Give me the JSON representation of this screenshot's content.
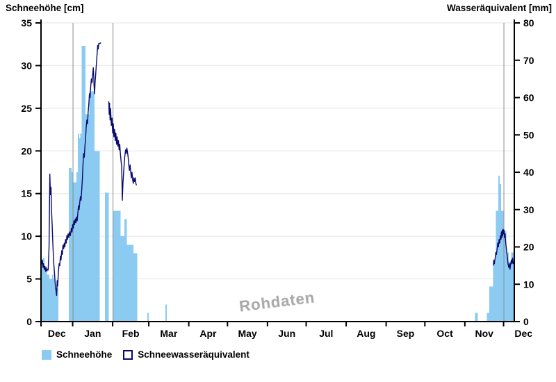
{
  "watermark": "Rohdaten",
  "legend": [
    {
      "label": "Schneehöhe",
      "swatch": "filled-lightblue-square"
    },
    {
      "label": "Schneewasseräquivalent",
      "swatch": "outlined-navy-square"
    }
  ],
  "colors": {
    "bar": "#8BCBF2",
    "line": "#0A0A6E",
    "grid": "#E6E6E6",
    "separator": "#8A8A8A",
    "axis": "#000000",
    "watermark": "#9C9C9C"
  },
  "chart_data": {
    "type": "bar+line",
    "title_left": "Schneehöhe [cm]",
    "title_right": "Wasseräquivalent [mm]",
    "left_axis": {
      "label": "Schneehöhe [cm]",
      "min": 0,
      "max": 35,
      "tick_step": 5,
      "ticks": [
        0,
        5,
        10,
        15,
        20,
        25,
        30,
        35
      ]
    },
    "right_axis": {
      "label": "Wasseräquivalent [mm]",
      "min": 0,
      "max": 80,
      "tick_step": 10,
      "ticks": [
        0,
        10,
        20,
        30,
        40,
        50,
        60,
        70,
        80
      ]
    },
    "x_axis": {
      "unit": "day of season, 0 = first Dec 1",
      "month_labels": [
        "Dec",
        "Jan",
        "Feb",
        "Mar",
        "Apr",
        "May",
        "Jun",
        "Jul",
        "Aug",
        "Sep",
        "Oct",
        "Nov",
        "Dec"
      ],
      "month_start_days": [
        0,
        31,
        62,
        90,
        121,
        151,
        182,
        212,
        243,
        274,
        304,
        335,
        365,
        396
      ],
      "visible_day_range": [
        6.5,
        373.4
      ]
    },
    "grid": {
      "horizontal": true,
      "vertical_month_separator_days": [
        31,
        62,
        365
      ]
    },
    "legend_position": "bottom-left",
    "snow_depth_bars_cm": [
      [
        7,
        7
      ],
      [
        8,
        7.5
      ],
      [
        9,
        6.5
      ],
      [
        10,
        6
      ],
      [
        11,
        5.5
      ],
      [
        12,
        5.5
      ],
      [
        13,
        5
      ],
      [
        14,
        5
      ],
      [
        15,
        5.5
      ],
      [
        16,
        5
      ],
      [
        17,
        4.5
      ],
      [
        18,
        4
      ],
      [
        19,
        4
      ],
      [
        28,
        18
      ],
      [
        29,
        18
      ],
      [
        30,
        17.5
      ],
      [
        31,
        16.3
      ],
      [
        32,
        16.3
      ],
      [
        33,
        16.3
      ],
      [
        34,
        17.5
      ],
      [
        35,
        22
      ],
      [
        36,
        21.5
      ],
      [
        37,
        22
      ],
      [
        38,
        32.3
      ],
      [
        39,
        32.3
      ],
      [
        40,
        32.3
      ],
      [
        41,
        24.3
      ],
      [
        42,
        24.3
      ],
      [
        43,
        24.3
      ],
      [
        44,
        27
      ],
      [
        45,
        27
      ],
      [
        46,
        27
      ],
      [
        47,
        27
      ],
      [
        48,
        20
      ],
      [
        49,
        20
      ],
      [
        50,
        20
      ],
      [
        51,
        20
      ],
      [
        56,
        15.1
      ],
      [
        57,
        15.1
      ],
      [
        58,
        15.1
      ],
      [
        62,
        13
      ],
      [
        63,
        13
      ],
      [
        64,
        13
      ],
      [
        65,
        13
      ],
      [
        66,
        13
      ],
      [
        67,
        13
      ],
      [
        68,
        10
      ],
      [
        69,
        10
      ],
      [
        70,
        10
      ],
      [
        71,
        12
      ],
      [
        72,
        12
      ],
      [
        73,
        9
      ],
      [
        74,
        9
      ],
      [
        75,
        9
      ],
      [
        76,
        9
      ],
      [
        77,
        9
      ],
      [
        78,
        8
      ],
      [
        79,
        8
      ],
      [
        80,
        8
      ],
      [
        89,
        1
      ],
      [
        103,
        2
      ],
      [
        343,
        1
      ],
      [
        344,
        1
      ],
      [
        352,
        1
      ],
      [
        353,
        1
      ],
      [
        354,
        4.1
      ],
      [
        355,
        4.1
      ],
      [
        356,
        4.1
      ],
      [
        357,
        6.8
      ],
      [
        358,
        6.8
      ],
      [
        359,
        13
      ],
      [
        360,
        13
      ],
      [
        361,
        17.1
      ],
      [
        362,
        16.1
      ],
      [
        363,
        13
      ],
      [
        364,
        13
      ],
      [
        365,
        10.6
      ],
      [
        366,
        10.6
      ],
      [
        367,
        8.1
      ],
      [
        368,
        8.1
      ],
      [
        369,
        7
      ],
      [
        370,
        7
      ],
      [
        371,
        8.1
      ],
      [
        372,
        8.1
      ],
      [
        373,
        7.4
      ]
    ],
    "swe_line_mm_segments": [
      [
        [
          6.5,
          17
        ],
        [
          7,
          15.5
        ],
        [
          7.5,
          16.5
        ],
        [
          8,
          14.5
        ],
        [
          8.5,
          15.5
        ],
        [
          9,
          14
        ],
        [
          9.5,
          14.8
        ],
        [
          10,
          13.5
        ],
        [
          10.5,
          14.5
        ],
        [
          11,
          13.5
        ],
        [
          11.5,
          14
        ],
        [
          12,
          13.8
        ],
        [
          12.7,
          20
        ],
        [
          13.3,
          39.5
        ],
        [
          13.8,
          34
        ],
        [
          14.2,
          36
        ],
        [
          14.6,
          30
        ],
        [
          15,
          27
        ],
        [
          15.5,
          22
        ],
        [
          16,
          18
        ],
        [
          16.5,
          15
        ],
        [
          17,
          12.5
        ],
        [
          17.5,
          10
        ],
        [
          18,
          8.5
        ],
        [
          18.6,
          7
        ],
        [
          19,
          11
        ],
        [
          19.4,
          9.5
        ],
        [
          20,
          13.5
        ],
        [
          20.5,
          15.5
        ],
        [
          21,
          15
        ],
        [
          21.5,
          17.5
        ],
        [
          22,
          16.5
        ],
        [
          22.5,
          19
        ],
        [
          23,
          18
        ],
        [
          23.5,
          20.5
        ],
        [
          24,
          19.5
        ],
        [
          24.5,
          21
        ],
        [
          25,
          20
        ],
        [
          25.5,
          22
        ],
        [
          26,
          21
        ],
        [
          26.5,
          23
        ],
        [
          27,
          22
        ],
        [
          27.5,
          23.5
        ],
        [
          28,
          22.5
        ],
        [
          28.5,
          24
        ],
        [
          29.2,
          23
        ],
        [
          30,
          25
        ],
        [
          30.5,
          24
        ],
        [
          31,
          26
        ],
        [
          31.5,
          25
        ],
        [
          32,
          27
        ],
        [
          32.5,
          26
        ],
        [
          33,
          27.5
        ],
        [
          33.5,
          26.5
        ],
        [
          34,
          28
        ],
        [
          34.5,
          27
        ],
        [
          35,
          29
        ],
        [
          35.5,
          31
        ],
        [
          36,
          30
        ],
        [
          36.5,
          32
        ],
        [
          37,
          33.5
        ],
        [
          37.5,
          32.5
        ],
        [
          38,
          35
        ],
        [
          38.5,
          38
        ],
        [
          39,
          42
        ],
        [
          39.5,
          45
        ],
        [
          40,
          44
        ],
        [
          40.5,
          47
        ],
        [
          41,
          49
        ],
        [
          41.5,
          52
        ],
        [
          42,
          54
        ],
        [
          42.5,
          53
        ],
        [
          43,
          56
        ],
        [
          43.5,
          58
        ],
        [
          44,
          61
        ],
        [
          44.5,
          60
        ],
        [
          45,
          63
        ],
        [
          45.5,
          65
        ],
        [
          46,
          64
        ],
        [
          46.5,
          66
        ],
        [
          47,
          68
        ],
        [
          47.3,
          66
        ],
        [
          47.6,
          63
        ],
        [
          48,
          61
        ],
        [
          48.4,
          64
        ],
        [
          48.8,
          66
        ],
        [
          49.2,
          68
        ],
        [
          49.6,
          70
        ],
        [
          50,
          72
        ],
        [
          50.4,
          74
        ],
        [
          50.8,
          73
        ],
        [
          51.3,
          74.5
        ],
        [
          52,
          74.5
        ],
        [
          53,
          74.7
        ]
      ],
      [
        [
          59,
          59
        ],
        [
          59.3,
          55.5
        ],
        [
          59.6,
          58.5
        ],
        [
          60,
          54
        ],
        [
          60.4,
          57
        ],
        [
          61,
          52.5
        ],
        [
          61.5,
          54.5
        ],
        [
          62,
          50.5
        ],
        [
          62.5,
          53
        ],
        [
          63,
          49.5
        ],
        [
          63.5,
          51.5
        ],
        [
          64,
          48.5
        ],
        [
          64.5,
          50.5
        ],
        [
          65,
          47.5
        ],
        [
          65.5,
          49.5
        ],
        [
          66,
          47
        ],
        [
          66.5,
          48.5
        ],
        [
          67,
          46
        ],
        [
          67.5,
          47.5
        ],
        [
          68,
          45
        ],
        [
          68.5,
          43
        ],
        [
          69,
          41.5
        ],
        [
          69.5,
          32.5
        ],
        [
          70,
          37
        ],
        [
          70.5,
          40
        ],
        [
          71,
          42.5
        ],
        [
          71.5,
          44.5
        ],
        [
          72,
          46
        ],
        [
          72.5,
          45
        ],
        [
          73,
          46.5
        ],
        [
          73.5,
          45.5
        ],
        [
          74,
          44
        ],
        [
          74.5,
          42
        ],
        [
          75,
          40.5
        ],
        [
          75.5,
          42
        ],
        [
          76,
          40
        ],
        [
          76.5,
          38.5
        ],
        [
          77,
          40
        ],
        [
          77.5,
          38
        ],
        [
          78,
          37
        ],
        [
          78.5,
          38.5
        ],
        [
          79,
          37.5
        ],
        [
          79.5,
          38.5
        ],
        [
          80,
          37
        ],
        [
          80.5,
          36.5
        ]
      ],
      [
        [
          357,
          15
        ],
        [
          357.5,
          16.5
        ],
        [
          358,
          15.5
        ],
        [
          358.5,
          17
        ],
        [
          359,
          18.5
        ],
        [
          359.5,
          18
        ],
        [
          360,
          19.5
        ],
        [
          360.5,
          21
        ],
        [
          361,
          20
        ],
        [
          361.5,
          22
        ],
        [
          362,
          21
        ],
        [
          362.5,
          23
        ],
        [
          363,
          22
        ],
        [
          363.3,
          24
        ],
        [
          363.7,
          22.5
        ],
        [
          364,
          24.5
        ],
        [
          364.3,
          23
        ],
        [
          364.7,
          24.7
        ],
        [
          365,
          23.5
        ],
        [
          365.4,
          24.5
        ],
        [
          365.8,
          22.5
        ],
        [
          366.2,
          23.5
        ],
        [
          366.6,
          21.5
        ],
        [
          367,
          20
        ],
        [
          367.5,
          18.5
        ],
        [
          368,
          17
        ],
        [
          368.5,
          15.5
        ],
        [
          369,
          14.5
        ],
        [
          369.5,
          15.5
        ],
        [
          370,
          14
        ],
        [
          370.5,
          15.5
        ],
        [
          371,
          16.5
        ],
        [
          371.5,
          15.5
        ],
        [
          372,
          17
        ],
        [
          372.5,
          15.5
        ],
        [
          373,
          16
        ]
      ]
    ]
  }
}
